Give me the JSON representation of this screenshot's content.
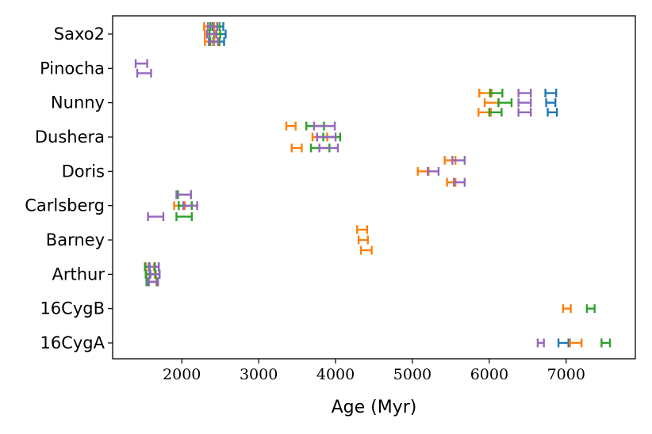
{
  "chart_data": {
    "type": "errorbar",
    "title": "",
    "xlabel": "Age (Myr)",
    "ylabel": "",
    "xlim": [
      1100,
      7900
    ],
    "xticks": [
      2000,
      3000,
      4000,
      5000,
      6000,
      7000
    ],
    "categories": [
      "16CygA",
      "16CygB",
      "Arthur",
      "Barney",
      "Carlsberg",
      "Doris",
      "Dushera",
      "Nunny",
      "Pinocha",
      "Saxo2"
    ],
    "colors": {
      "blue": "#1f77b4",
      "orange": "#ff7f0e",
      "green": "#2ca02c",
      "purple": "#9467bd"
    },
    "series": [
      {
        "name": "blue",
        "color": "#1f77b4",
        "points": [
          {
            "category": "Saxo2",
            "offset": 0.22,
            "low": 2400,
            "high": 2540
          },
          {
            "category": "Saxo2",
            "offset": 0.0,
            "low": 2420,
            "high": 2570
          },
          {
            "category": "Saxo2",
            "offset": -0.22,
            "low": 2410,
            "high": 2550
          },
          {
            "category": "Nunny",
            "offset": 0.28,
            "low": 6730,
            "high": 6870
          },
          {
            "category": "Nunny",
            "offset": 0.0,
            "low": 6740,
            "high": 6860
          },
          {
            "category": "Nunny",
            "offset": -0.28,
            "low": 6760,
            "high": 6880
          },
          {
            "category": "Arthur",
            "offset": 0.22,
            "low": 1580,
            "high": 1700
          },
          {
            "category": "Arthur",
            "offset": 0.0,
            "low": 1590,
            "high": 1710
          },
          {
            "category": "Arthur",
            "offset": -0.22,
            "low": 1570,
            "high": 1690
          },
          {
            "category": "16CygA",
            "offset": 0.0,
            "low": 6900,
            "high": 7030
          }
        ]
      },
      {
        "name": "orange",
        "color": "#ff7f0e",
        "points": [
          {
            "category": "Saxo2",
            "offset": 0.22,
            "low": 2290,
            "high": 2420
          },
          {
            "category": "Saxo2",
            "offset": 0.0,
            "low": 2300,
            "high": 2430
          },
          {
            "category": "Saxo2",
            "offset": -0.22,
            "low": 2300,
            "high": 2420
          },
          {
            "category": "Nunny",
            "offset": 0.28,
            "low": 5870,
            "high": 6030
          },
          {
            "category": "Nunny",
            "offset": 0.0,
            "low": 5940,
            "high": 6120
          },
          {
            "category": "Nunny",
            "offset": -0.28,
            "low": 5860,
            "high": 6020
          },
          {
            "category": "Dushera",
            "offset": 0.32,
            "low": 3360,
            "high": 3480
          },
          {
            "category": "Dushera",
            "offset": 0.0,
            "low": 3700,
            "high": 3890
          },
          {
            "category": "Dushera",
            "offset": -0.32,
            "low": 3430,
            "high": 3560
          },
          {
            "category": "Doris",
            "offset": 0.0,
            "low": 5070,
            "high": 5210
          },
          {
            "category": "Doris",
            "offset": 0.32,
            "low": 5420,
            "high": 5560
          },
          {
            "category": "Doris",
            "offset": -0.32,
            "low": 5450,
            "high": 5560
          },
          {
            "category": "Carlsberg",
            "offset": 0.0,
            "low": 1900,
            "high": 2040
          },
          {
            "category": "Barney",
            "offset": 0.3,
            "low": 4280,
            "high": 4410
          },
          {
            "category": "Barney",
            "offset": 0.0,
            "low": 4300,
            "high": 4420
          },
          {
            "category": "Barney",
            "offset": -0.3,
            "low": 4330,
            "high": 4470
          },
          {
            "category": "Arthur",
            "offset": 0.22,
            "low": 1530,
            "high": 1640
          },
          {
            "category": "Arthur",
            "offset": 0.0,
            "low": 1540,
            "high": 1650
          },
          {
            "category": "Arthur",
            "offset": -0.22,
            "low": 1550,
            "high": 1670
          },
          {
            "category": "16CygB",
            "offset": 0.0,
            "low": 6960,
            "high": 7060
          },
          {
            "category": "16CygA",
            "offset": 0.0,
            "low": 7050,
            "high": 7200
          }
        ]
      },
      {
        "name": "green",
        "color": "#2ca02c",
        "points": [
          {
            "category": "Saxo2",
            "offset": 0.22,
            "low": 2370,
            "high": 2490
          },
          {
            "category": "Saxo2",
            "offset": 0.0,
            "low": 2360,
            "high": 2500
          },
          {
            "category": "Saxo2",
            "offset": -0.22,
            "low": 2370,
            "high": 2490
          },
          {
            "category": "Nunny",
            "offset": 0.28,
            "low": 6010,
            "high": 6170
          },
          {
            "category": "Nunny",
            "offset": 0.0,
            "low": 6120,
            "high": 6290
          },
          {
            "category": "Nunny",
            "offset": -0.28,
            "low": 6000,
            "high": 6160
          },
          {
            "category": "Dushera",
            "offset": 0.32,
            "low": 3620,
            "high": 3850
          },
          {
            "category": "Dushera",
            "offset": 0.0,
            "low": 3840,
            "high": 4060
          },
          {
            "category": "Dushera",
            "offset": -0.32,
            "low": 3680,
            "high": 3920
          },
          {
            "category": "Carlsberg",
            "offset": 0.32,
            "low": 1950,
            "high": 2120
          },
          {
            "category": "Carlsberg",
            "offset": 0.0,
            "low": 1960,
            "high": 2130
          },
          {
            "category": "Carlsberg",
            "offset": -0.32,
            "low": 1930,
            "high": 2130
          },
          {
            "category": "Arthur",
            "offset": 0.22,
            "low": 1520,
            "high": 1650
          },
          {
            "category": "Arthur",
            "offset": 0.0,
            "low": 1530,
            "high": 1660
          },
          {
            "category": "Arthur",
            "offset": -0.22,
            "low": 1540,
            "high": 1680
          },
          {
            "category": "16CygB",
            "offset": 0.0,
            "low": 7270,
            "high": 7370
          },
          {
            "category": "16CygA",
            "offset": 0.0,
            "low": 7460,
            "high": 7570
          }
        ]
      },
      {
        "name": "purple",
        "color": "#9467bd",
        "points": [
          {
            "category": "Saxo2",
            "offset": 0.22,
            "low": 2340,
            "high": 2460
          },
          {
            "category": "Saxo2",
            "offset": 0.0,
            "low": 2330,
            "high": 2450
          },
          {
            "category": "Saxo2",
            "offset": -0.22,
            "low": 2350,
            "high": 2470
          },
          {
            "category": "Pinocha",
            "offset": 0.14,
            "low": 1400,
            "high": 1550
          },
          {
            "category": "Pinocha",
            "offset": -0.14,
            "low": 1420,
            "high": 1600
          },
          {
            "category": "Nunny",
            "offset": 0.28,
            "low": 6380,
            "high": 6540
          },
          {
            "category": "Nunny",
            "offset": 0.0,
            "low": 6380,
            "high": 6540
          },
          {
            "category": "Nunny",
            "offset": -0.28,
            "low": 6380,
            "high": 6540
          },
          {
            "category": "Dushera",
            "offset": 0.32,
            "low": 3720,
            "high": 3990
          },
          {
            "category": "Dushera",
            "offset": 0.0,
            "low": 3760,
            "high": 4000
          },
          {
            "category": "Dushera",
            "offset": -0.32,
            "low": 3790,
            "high": 4030
          },
          {
            "category": "Doris",
            "offset": 0.32,
            "low": 5520,
            "high": 5680
          },
          {
            "category": "Doris",
            "offset": 0.0,
            "low": 5200,
            "high": 5340
          },
          {
            "category": "Doris",
            "offset": -0.32,
            "low": 5540,
            "high": 5680
          },
          {
            "category": "Carlsberg",
            "offset": 0.32,
            "low": 1930,
            "high": 2120
          },
          {
            "category": "Carlsberg",
            "offset": 0.0,
            "low": 2020,
            "high": 2200
          },
          {
            "category": "Carlsberg",
            "offset": -0.32,
            "low": 1560,
            "high": 1760
          },
          {
            "category": "Arthur",
            "offset": 0.22,
            "low": 1570,
            "high": 1700
          },
          {
            "category": "Arthur",
            "offset": 0.0,
            "low": 1580,
            "high": 1710
          },
          {
            "category": "Arthur",
            "offset": -0.22,
            "low": 1560,
            "high": 1690
          },
          {
            "category": "16CygA",
            "offset": 0.0,
            "low": 6630,
            "high": 6710
          }
        ]
      }
    ]
  }
}
